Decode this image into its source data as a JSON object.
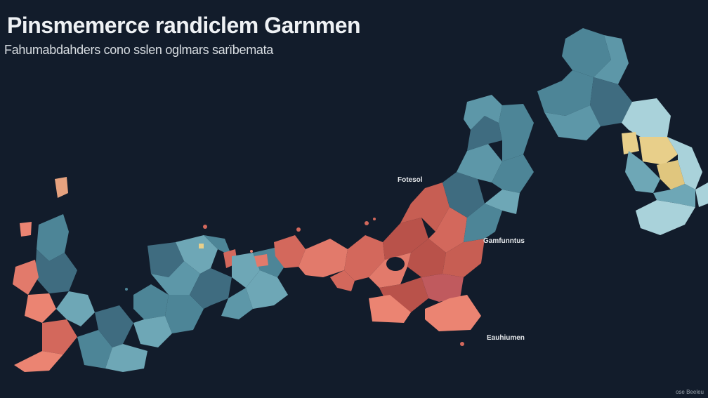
{
  "title": "Pinsmemerce randiclem Garnmen",
  "subtitle": "Fahumabdahders cono sslen oglmars sarïbemata",
  "labels": {
    "label_a": "Fotesol",
    "label_b": "Gamfunntus",
    "label_c": "Eauhiumen"
  },
  "credit": "ose Beeleu",
  "colors": {
    "background": "#121c2b",
    "blue_dark": "#3f6c80",
    "blue_mid": "#4d8597",
    "blue_light": "#6ea7b6",
    "blue_pale": "#a9d2da",
    "red_dark": "#b9524a",
    "red_mid": "#d3685c",
    "salmon": "#eb8472",
    "yellow": "#e8cf8a"
  }
}
